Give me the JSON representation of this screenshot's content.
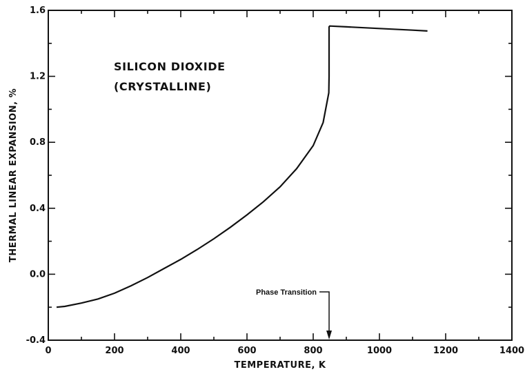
{
  "chart_data": {
    "type": "line",
    "title_lines": [
      "SILICON DIOXIDE",
      "(CRYSTALLINE)"
    ],
    "xlabel": "TEMPERATURE, K",
    "ylabel": "THERMAL LINEAR EXPANSION, %",
    "xlim": [
      0,
      1400
    ],
    "ylim": [
      -0.4,
      1.6
    ],
    "x_ticks": [
      0,
      200,
      400,
      600,
      800,
      1000,
      1200,
      1400
    ],
    "y_ticks": [
      -0.4,
      0.0,
      0.4,
      0.8,
      1.2,
      1.6
    ],
    "x_tick_labels": [
      "0",
      "200",
      "400",
      "600",
      "800",
      "1000",
      "1200",
      "1400"
    ],
    "y_tick_labels": [
      "-0.4",
      "0.0",
      "0.4",
      "0.8",
      "1.2",
      "1.6"
    ],
    "x_minor_step": 100,
    "y_minor_step": 0.2,
    "grid": false,
    "series": [
      {
        "x": [
          25,
          50,
          100,
          150,
          200,
          250,
          300,
          350,
          400,
          450,
          500,
          550,
          600,
          650,
          700,
          750,
          800,
          830,
          847,
          848,
          848,
          850,
          900,
          1000,
          1100,
          1145
        ],
        "y": [
          -0.2,
          -0.195,
          -0.175,
          -0.15,
          -0.115,
          -0.07,
          -0.02,
          0.035,
          0.09,
          0.15,
          0.215,
          0.285,
          0.36,
          0.44,
          0.53,
          0.64,
          0.78,
          0.92,
          1.1,
          1.2,
          1.5,
          1.505,
          1.5,
          1.49,
          1.48,
          1.475
        ]
      }
    ],
    "annotations": [
      {
        "text": "Phase Transition",
        "x": 848,
        "y": -0.4
      }
    ]
  }
}
